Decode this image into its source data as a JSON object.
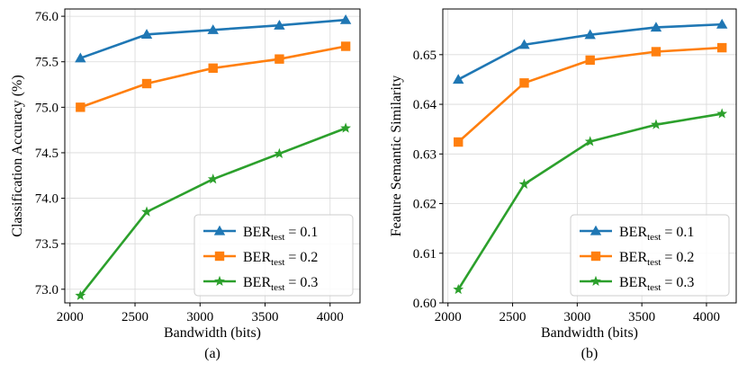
{
  "chart_data": [
    {
      "type": "line",
      "caption": "(a)",
      "xlabel": "Bandwidth (bits)",
      "ylabel": "Classification Accuracy (%)",
      "xlim": [
        1960,
        4230
      ],
      "ylim": [
        72.85,
        76.08
      ],
      "xticks": [
        2000,
        2500,
        3000,
        3500,
        4000
      ],
      "yticks": [
        73.0,
        73.5,
        74.0,
        74.5,
        75.0,
        75.5,
        76.0
      ],
      "ytick_decimals": 1,
      "grid": true,
      "legend_position": "lower-right",
      "x": [
        2080,
        2590,
        3100,
        3610,
        4120
      ],
      "series": [
        {
          "name_main": "BER",
          "name_sub": "test",
          "name_tail": " = 0.1",
          "color": "#1f77b4",
          "marker": "triangle",
          "values": [
            75.54,
            75.8,
            75.85,
            75.9,
            75.96
          ]
        },
        {
          "name_main": "BER",
          "name_sub": "test",
          "name_tail": " = 0.2",
          "color": "#ff7f0e",
          "marker": "square",
          "values": [
            75.0,
            75.26,
            75.43,
            75.53,
            75.67
          ]
        },
        {
          "name_main": "BER",
          "name_sub": "test",
          "name_tail": " = 0.3",
          "color": "#2ca02c",
          "marker": "star",
          "values": [
            72.93,
            73.85,
            74.21,
            74.49,
            74.77
          ]
        }
      ]
    },
    {
      "type": "line",
      "caption": "(b)",
      "xlabel": "Bandwidth (bits)",
      "ylabel": "Feature Semantic Similarity",
      "xlim": [
        1960,
        4230
      ],
      "ylim": [
        0.6,
        0.6592
      ],
      "xticks": [
        2000,
        2500,
        3000,
        3500,
        4000
      ],
      "yticks": [
        0.6,
        0.61,
        0.62,
        0.63,
        0.64,
        0.65
      ],
      "ytick_decimals": 2,
      "grid": true,
      "legend_position": "lower-right",
      "x": [
        2080,
        2590,
        3100,
        3610,
        4120
      ],
      "series": [
        {
          "name_main": "BER",
          "name_sub": "test",
          "name_tail": " = 0.1",
          "color": "#1f77b4",
          "marker": "triangle",
          "values": [
            0.645,
            0.652,
            0.654,
            0.6555,
            0.6561
          ]
        },
        {
          "name_main": "BER",
          "name_sub": "test",
          "name_tail": " = 0.2",
          "color": "#ff7f0e",
          "marker": "square",
          "values": [
            0.6324,
            0.6443,
            0.6489,
            0.6506,
            0.6514
          ]
        },
        {
          "name_main": "BER",
          "name_sub": "test",
          "name_tail": " = 0.3",
          "color": "#2ca02c",
          "marker": "star",
          "values": [
            0.6027,
            0.6239,
            0.6325,
            0.6359,
            0.6381
          ]
        }
      ]
    }
  ]
}
